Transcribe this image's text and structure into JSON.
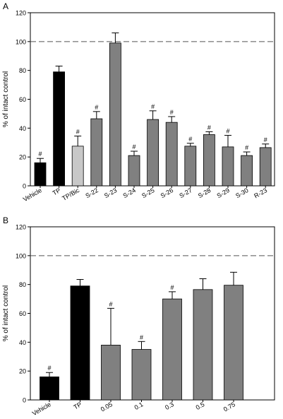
{
  "figure": {
    "panel_a_label": "A",
    "panel_b_label": "B"
  },
  "chart_data": [
    {
      "type": "bar",
      "panel": "A",
      "ylabel": "% of intact control",
      "xlabel": "",
      "ylim": [
        0,
        120
      ],
      "yticks": [
        0,
        20,
        40,
        60,
        80,
        100,
        120
      ],
      "reference_line": {
        "y": 100,
        "style": "dashed"
      },
      "grid": false,
      "categories": [
        "Vehicle",
        "TP",
        "TP/Bic",
        "S-22",
        "S-23",
        "S-24",
        "S-25",
        "S-26",
        "S-27",
        "S-28",
        "S-29",
        "S-30",
        "R-23"
      ],
      "values": [
        16,
        79,
        27.5,
        46.5,
        99,
        21,
        46,
        44,
        27.5,
        35.5,
        27,
        21,
        26.5
      ],
      "errors": [
        3,
        4,
        7,
        5,
        7,
        3,
        6,
        4,
        2,
        2,
        8,
        2.5,
        2.5
      ],
      "bar_colors": [
        "#000000",
        "#000000",
        "#c8c8c8",
        "#808080",
        "#808080",
        "#808080",
        "#808080",
        "#808080",
        "#808080",
        "#808080",
        "#808080",
        "#808080",
        "#808080"
      ],
      "annotations": [
        "#",
        "",
        "#",
        "#",
        "",
        "#",
        "#",
        "#",
        "#",
        "#",
        "#",
        "#",
        "#"
      ]
    },
    {
      "type": "bar",
      "panel": "B",
      "ylabel": "% of intact control",
      "xlabel": "",
      "ylim": [
        0,
        120
      ],
      "yticks": [
        0,
        20,
        40,
        60,
        80,
        100,
        120
      ],
      "reference_line": {
        "y": 100,
        "style": "dashed"
      },
      "grid": false,
      "categories": [
        "Vehicle",
        "TP",
        "0.05",
        "0.1",
        "0.3",
        "0.5",
        "0.75"
      ],
      "values": [
        16,
        79,
        38,
        35,
        70,
        76.5,
        79.5
      ],
      "errors": [
        3,
        4.5,
        25.5,
        5.5,
        5,
        7.5,
        9
      ],
      "bar_colors": [
        "#000000",
        "#000000",
        "#808080",
        "#808080",
        "#808080",
        "#808080",
        "#808080"
      ],
      "annotations": [
        "#",
        "",
        "#",
        "#",
        "#",
        "",
        ""
      ]
    }
  ]
}
